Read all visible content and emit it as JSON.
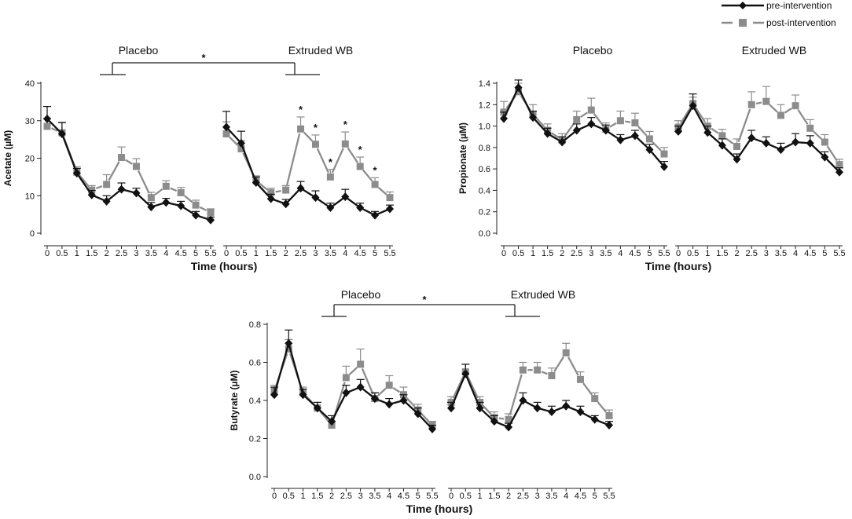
{
  "legend": {
    "pre_label": "pre-intervention",
    "post_label": "post-intervention",
    "position": "top-right"
  },
  "colors": {
    "pre": "#111111",
    "post": "#8c8c8c"
  },
  "chart_data": [
    {
      "type": "line",
      "id": "acetate",
      "ylabel": "Acetate (µM)",
      "xlabel": "Time (hours)",
      "ylim": [
        0,
        40
      ],
      "yticks": [
        0,
        10,
        20,
        30,
        40
      ],
      "x": [
        0,
        0.5,
        1,
        1.5,
        2,
        2.5,
        3,
        3.5,
        4,
        4.5,
        5,
        5.5
      ],
      "xtick_labels": [
        "0",
        "0.5",
        "1",
        "1.5",
        "2",
        "2.5",
        "3",
        "3.5",
        "4",
        "4.5",
        "5",
        "5.5"
      ],
      "comparison": "*",
      "panels": [
        {
          "title": "Placebo",
          "series": [
            {
              "name": "pre-intervention",
              "values": [
                30.5,
                26.5,
                16,
                10.2,
                8.5,
                11.7,
                10.7,
                7,
                8.2,
                7.3,
                4.8,
                3.5
              ],
              "errors": [
                3.3,
                3,
                1.3,
                1.2,
                1.5,
                1.7,
                1.3,
                1.2,
                1.1,
                1.2,
                1.0,
                0.8
              ]
            },
            {
              "name": "post-intervention",
              "values": [
                28.5,
                26.8,
                16.3,
                11.5,
                13,
                20.2,
                17.8,
                9.5,
                12.5,
                10.8,
                7.5,
                5.5
              ],
              "errors": [
                2.2,
                2.8,
                1.4,
                1.2,
                2.6,
                2.8,
                2.1,
                1.4,
                1.5,
                1.4,
                1.3,
                1
              ]
            }
          ],
          "stars": []
        },
        {
          "title": "Extruded WB",
          "series": [
            {
              "name": "pre-intervention",
              "values": [
                28.3,
                24,
                13.5,
                9.2,
                7.8,
                12,
                9.5,
                6.8,
                9.7,
                6.8,
                4.8,
                6.5
              ],
              "errors": [
                4.2,
                3.2,
                1.5,
                1.2,
                1.2,
                1.8,
                1.8,
                1.2,
                2,
                1.2,
                1,
                1
              ]
            },
            {
              "name": "post-intervention",
              "values": [
                26.5,
                22.5,
                14,
                10.8,
                11.5,
                27.8,
                23.7,
                15,
                23.8,
                17.8,
                13,
                9.5
              ],
              "errors": [
                3.2,
                2.2,
                1.3,
                1.2,
                1.2,
                3.2,
                2.5,
                2,
                3.2,
                2.5,
                1.8,
                1.5
              ]
            }
          ],
          "stars": [
            5,
            6,
            7,
            8,
            9,
            10
          ]
        }
      ]
    },
    {
      "type": "line",
      "id": "propionate",
      "ylabel": "Propionate (µM)",
      "xlabel": "Time (hours)",
      "ylim": [
        0,
        1.4
      ],
      "yticks": [
        0,
        0.2,
        0.4,
        0.6,
        0.8,
        1.0,
        1.2,
        1.4
      ],
      "ytick_labels": [
        "0.0",
        "0.2",
        "0.4",
        "0.6",
        "0.8",
        "1.0",
        "1.2",
        "1.4"
      ],
      "x": [
        0,
        0.5,
        1,
        1.5,
        2,
        2.5,
        3,
        3.5,
        4,
        4.5,
        5,
        5.5
      ],
      "xtick_labels": [
        "0",
        "0.5",
        "1",
        "1.5",
        "2",
        "2.5",
        "3",
        "3.5",
        "4",
        "4.5",
        "5",
        "5.5"
      ],
      "panels": [
        {
          "title": "Placebo",
          "series": [
            {
              "name": "pre-intervention",
              "values": [
                1.07,
                1.36,
                1.08,
                0.93,
                0.85,
                0.96,
                1.02,
                0.96,
                0.87,
                0.91,
                0.78,
                0.62
              ],
              "errors": [
                0.06,
                0.07,
                0.06,
                0.05,
                0.05,
                0.06,
                0.06,
                0.05,
                0.05,
                0.05,
                0.05,
                0.05
              ]
            },
            {
              "name": "post-intervention",
              "values": [
                1.13,
                1.32,
                1.11,
                0.96,
                0.87,
                1.06,
                1.15,
                0.97,
                1.05,
                1.03,
                0.88,
                0.74
              ],
              "errors": [
                0.1,
                0.08,
                0.09,
                0.06,
                0.06,
                0.08,
                0.11,
                0.06,
                0.09,
                0.09,
                0.07,
                0.06
              ]
            }
          ],
          "stars": []
        },
        {
          "title": "Extruded WB",
          "series": [
            {
              "name": "pre-intervention",
              "values": [
                0.95,
                1.19,
                0.94,
                0.82,
                0.69,
                0.89,
                0.84,
                0.78,
                0.85,
                0.84,
                0.71,
                0.57
              ],
              "errors": [
                0.05,
                0.11,
                0.06,
                0.06,
                0.05,
                0.07,
                0.06,
                0.06,
                0.08,
                0.07,
                0.05,
                0.04
              ]
            },
            {
              "name": "post-intervention",
              "values": [
                0.99,
                1.21,
                1.0,
                0.91,
                0.81,
                1.2,
                1.23,
                1.1,
                1.19,
                0.98,
                0.85,
                0.64
              ],
              "errors": [
                0.06,
                0.06,
                0.07,
                0.06,
                0.07,
                0.12,
                0.14,
                0.1,
                0.1,
                0.08,
                0.07,
                0.05
              ]
            }
          ],
          "stars": []
        }
      ]
    },
    {
      "type": "line",
      "id": "butyrate",
      "ylabel": "Butyrate (µM)",
      "xlabel": "Time (hours)",
      "ylim": [
        0,
        0.8
      ],
      "yticks": [
        0,
        0.2,
        0.4,
        0.6,
        0.8
      ],
      "ytick_labels": [
        "0.0",
        "0.2",
        "0.4",
        "0.6",
        "0.8"
      ],
      "x": [
        0,
        0.5,
        1,
        1.5,
        2,
        2.5,
        3,
        3.5,
        4,
        4.5,
        5,
        5.5
      ],
      "xtick_labels": [
        "0",
        "0.5",
        "1",
        "1.5",
        "2",
        "2.5",
        "3",
        "3.5",
        "4",
        "4.5",
        "5",
        "5.5"
      ],
      "comparison": "*",
      "panels": [
        {
          "title": "Placebo",
          "series": [
            {
              "name": "pre-intervention",
              "values": [
                0.43,
                0.7,
                0.43,
                0.36,
                0.29,
                0.44,
                0.47,
                0.41,
                0.38,
                0.4,
                0.33,
                0.25
              ],
              "errors": [
                0.04,
                0.07,
                0.03,
                0.03,
                0.03,
                0.04,
                0.04,
                0.03,
                0.03,
                0.03,
                0.03,
                0.02
              ]
            },
            {
              "name": "post-intervention",
              "values": [
                0.45,
                0.67,
                0.44,
                0.36,
                0.27,
                0.52,
                0.59,
                0.41,
                0.48,
                0.43,
                0.35,
                0.27
              ],
              "errors": [
                0.03,
                0.05,
                0.03,
                0.03,
                0.02,
                0.06,
                0.08,
                0.03,
                0.05,
                0.04,
                0.03,
                0.02
              ]
            }
          ],
          "stars": []
        },
        {
          "title": "Extruded WB",
          "series": [
            {
              "name": "pre-intervention",
              "values": [
                0.36,
                0.54,
                0.36,
                0.29,
                0.26,
                0.4,
                0.36,
                0.34,
                0.37,
                0.34,
                0.3,
                0.27
              ],
              "errors": [
                0.03,
                0.05,
                0.03,
                0.03,
                0.02,
                0.04,
                0.03,
                0.03,
                0.03,
                0.03,
                0.02,
                0.02
              ]
            },
            {
              "name": "post-intervention",
              "values": [
                0.39,
                0.55,
                0.39,
                0.31,
                0.3,
                0.56,
                0.56,
                0.53,
                0.65,
                0.51,
                0.41,
                0.32
              ],
              "errors": [
                0.03,
                0.04,
                0.03,
                0.03,
                0.03,
                0.04,
                0.04,
                0.04,
                0.05,
                0.04,
                0.03,
                0.03
              ]
            }
          ],
          "stars": []
        }
      ]
    }
  ]
}
